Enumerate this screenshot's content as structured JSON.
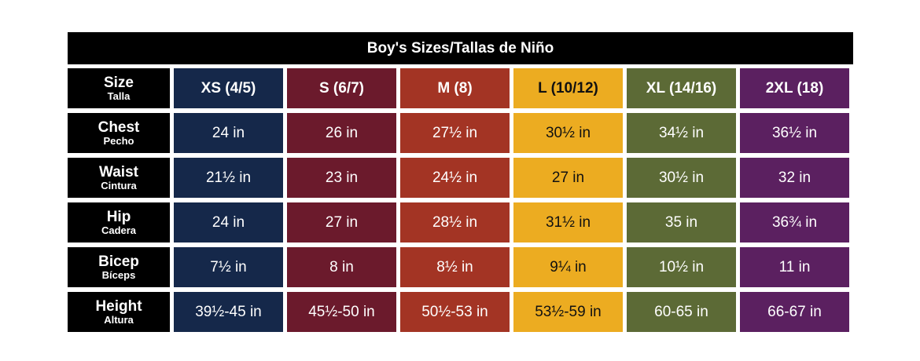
{
  "title": "Boy's Sizes/Tallas de Niño",
  "colors": {
    "navy": "#15284a",
    "maroon": "#6b1a2c",
    "rust": "#a33424",
    "gold": "#ecac21",
    "olive": "#5c6a36",
    "purple": "#5b2060",
    "black": "#000000"
  },
  "header": {
    "label": {
      "main": "Size",
      "sub": "Talla"
    },
    "sizes": [
      "XS (4/5)",
      "S (6/7)",
      "M (8)",
      "L (10/12)",
      "XL (14/16)",
      "2XL (18)"
    ]
  },
  "rows": [
    {
      "label": "Chest",
      "sub": "Pecho",
      "values": [
        "24 in",
        "26 in",
        "27½ in",
        "30½ in",
        "34½ in",
        "36½ in"
      ]
    },
    {
      "label": "Waist",
      "sub": "Cintura",
      "values": [
        "21½ in",
        "23 in",
        "24½ in",
        "27 in",
        "30½ in",
        "32 in"
      ]
    },
    {
      "label": "Hip",
      "sub": "Cadera",
      "values": [
        "24 in",
        "27 in",
        "28½ in",
        "31½ in",
        "35 in",
        "36¾ in"
      ]
    },
    {
      "label": "Bicep",
      "sub": "Bíceps",
      "values": [
        "7½ in",
        "8 in",
        "8½ in",
        "9¼ in",
        "10½ in",
        "11 in"
      ]
    },
    {
      "label": "Height",
      "sub": "Altura",
      "values": [
        "39½-45 in",
        "45½-50 in",
        "50½-53 in",
        "53½-59 in",
        "60-65 in",
        "66-67 in"
      ]
    }
  ]
}
